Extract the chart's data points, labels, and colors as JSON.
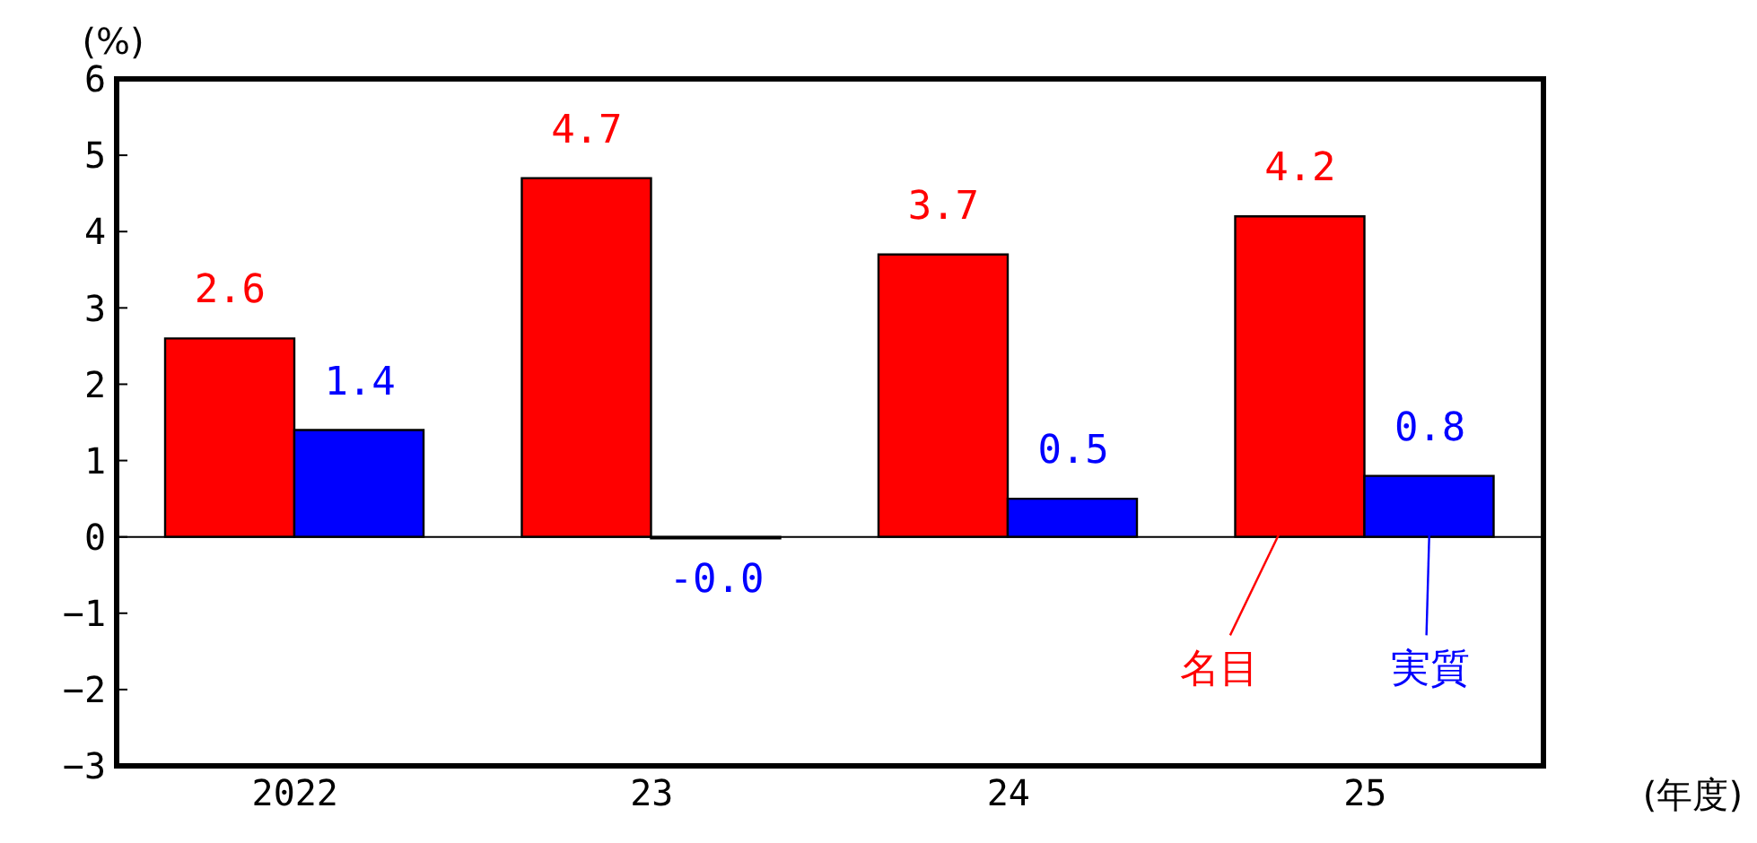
{
  "chart_data": {
    "type": "bar",
    "ylabel": "(%)",
    "xlabel": "(年度)",
    "categories": [
      "2022",
      "23",
      "24",
      "25"
    ],
    "series": [
      {
        "name": "名目",
        "color": "#ff0000",
        "values": [
          2.6,
          4.7,
          3.7,
          4.2
        ],
        "value_labels": [
          "2.6",
          "4.7",
          "3.7",
          "4.2"
        ]
      },
      {
        "name": "実質",
        "color": "#0000ff",
        "values": [
          1.4,
          -0.02,
          0.5,
          0.8
        ],
        "value_labels": [
          "1.4",
          "-0.0",
          "0.5",
          "0.8"
        ]
      }
    ],
    "ylim": [
      -3,
      6
    ],
    "yticks": [
      -3,
      -2,
      -1,
      0,
      1,
      2,
      3,
      4,
      5,
      6
    ],
    "grid": false,
    "legend": false,
    "ref_lines": [
      {
        "axis": "y",
        "value": 0,
        "color": "#000000"
      }
    ]
  }
}
